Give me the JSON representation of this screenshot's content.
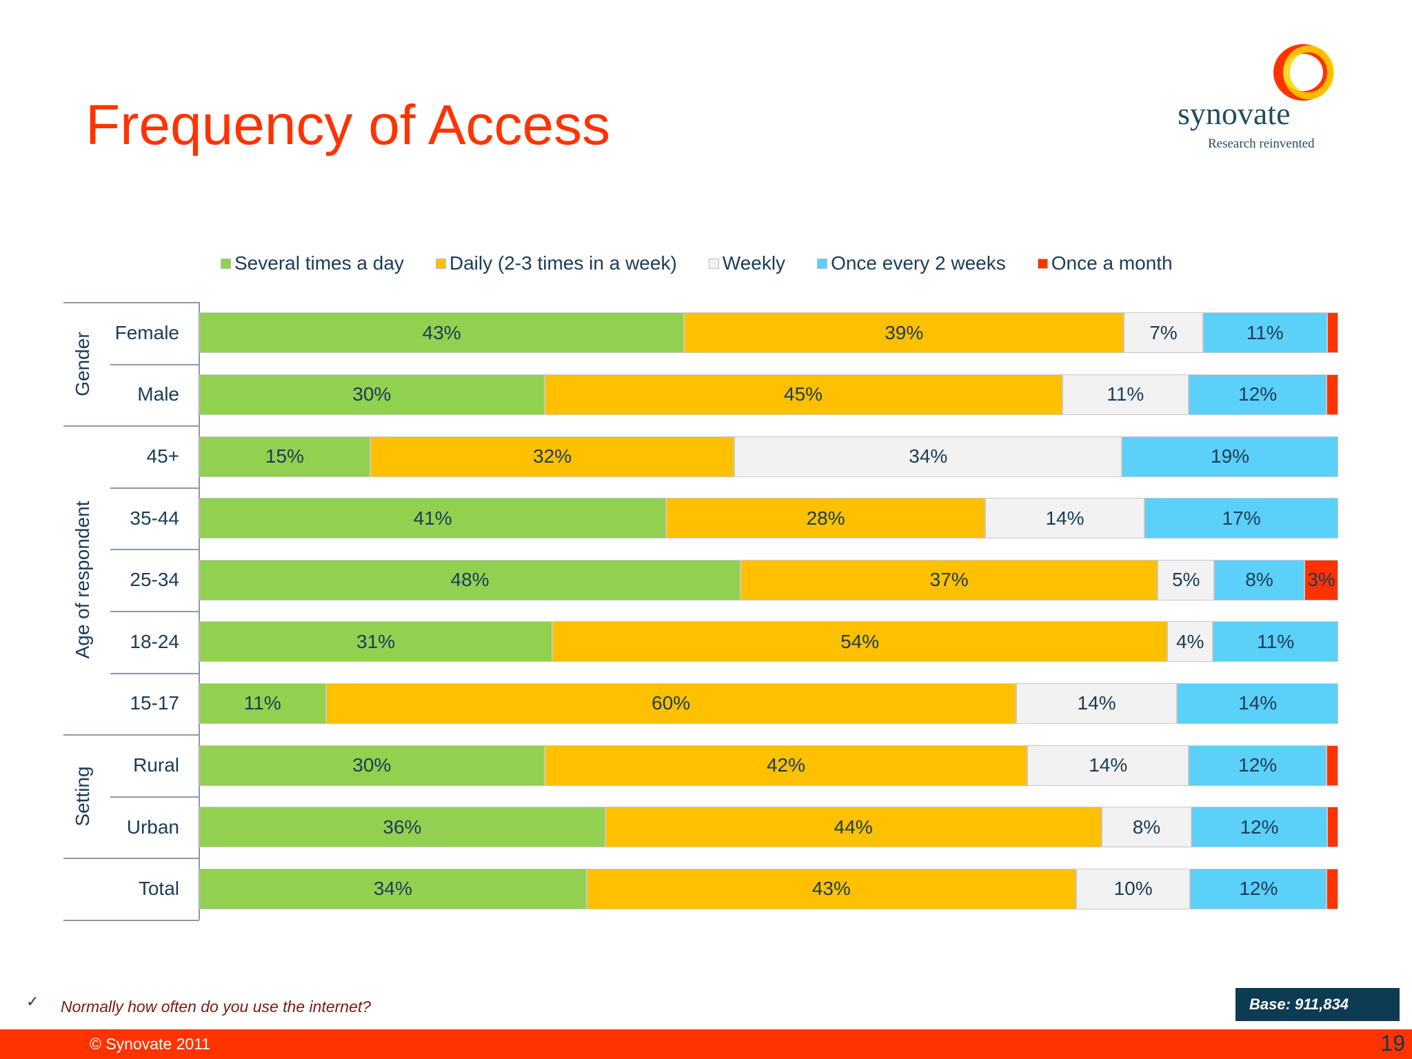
{
  "title": "Frequency of Access",
  "logo": {
    "word": "synovate",
    "tagline": "Research reinvented"
  },
  "footer": {
    "question": "Normally how often do you use the internet?",
    "base": "Base: 911,834",
    "copyright": "© Synovate 2011",
    "page": "19",
    "check_icon": "✓"
  },
  "chart_data": {
    "type": "stacked-bar-horizontal-100",
    "legend_position": "top",
    "series": [
      {
        "name": "Several times a day",
        "color": "#92d050"
      },
      {
        "name": "Daily (2-3 times in a week)",
        "color": "#ffc000"
      },
      {
        "name": "Weekly",
        "color": "#f2f2f2"
      },
      {
        "name": "Once every 2 weeks",
        "color": "#5bd0f8"
      },
      {
        "name": "Once a month",
        "color": "#ff3300"
      }
    ],
    "groups": [
      {
        "name": "Gender",
        "rows": [
          {
            "label": "Female",
            "values": [
              43,
              39,
              7,
              11,
              1
            ],
            "labels": [
              "43%",
              "39%",
              "7%",
              "11%",
              ""
            ]
          },
          {
            "label": "Male",
            "values": [
              30,
              45,
              11,
              12,
              1
            ],
            "labels": [
              "30%",
              "45%",
              "11%",
              "12%",
              ""
            ]
          }
        ]
      },
      {
        "name": "Age of respondent",
        "rows": [
          {
            "label": "45+",
            "values": [
              15,
              32,
              34,
              19,
              0
            ],
            "labels": [
              "15%",
              "32%",
              "34%",
              "19%",
              ""
            ]
          },
          {
            "label": "35-44",
            "values": [
              41,
              28,
              14,
              17,
              0
            ],
            "labels": [
              "41%",
              "28%",
              "14%",
              "17%",
              ""
            ]
          },
          {
            "label": "25-34",
            "values": [
              48,
              37,
              5,
              8,
              3
            ],
            "labels": [
              "48%",
              "37%",
              "5%",
              "8%",
              "3%"
            ]
          },
          {
            "label": "18-24",
            "values": [
              31,
              54,
              4,
              11,
              0
            ],
            "labels": [
              "31%",
              "54%",
              "4%",
              "11%",
              ""
            ]
          },
          {
            "label": "15-17",
            "values": [
              11,
              60,
              14,
              14,
              0
            ],
            "labels": [
              "11%",
              "60%",
              "14%",
              "14%",
              ""
            ]
          }
        ]
      },
      {
        "name": "Setting",
        "rows": [
          {
            "label": "Rural",
            "values": [
              30,
              42,
              14,
              12,
              1
            ],
            "labels": [
              "30%",
              "42%",
              "14%",
              "12%",
              ""
            ]
          },
          {
            "label": "Urban",
            "values": [
              36,
              44,
              8,
              12,
              1
            ],
            "labels": [
              "36%",
              "44%",
              "8%",
              "12%",
              ""
            ]
          }
        ]
      },
      {
        "name": "",
        "rows": [
          {
            "label": "Total",
            "values": [
              34,
              43,
              10,
              12,
              1
            ],
            "labels": [
              "34%",
              "43%",
              "10%",
              "12%",
              ""
            ]
          }
        ]
      }
    ]
  }
}
